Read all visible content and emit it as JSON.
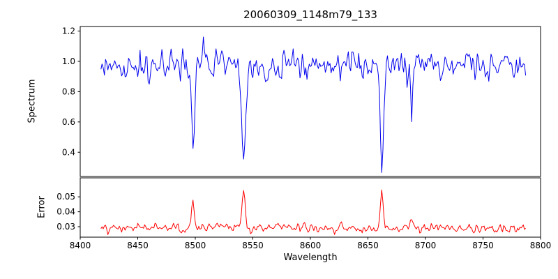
{
  "title": "20060309_1148m79_133",
  "chart_data": {
    "type": "line",
    "title": "20060309_1148m79_133",
    "xlabel": "Wavelength",
    "x_axis_range": [
      8400,
      8800
    ],
    "x_data_range": [
      8418,
      8787
    ],
    "x_ticks": [
      8400,
      8450,
      8500,
      8550,
      8600,
      8650,
      8700,
      8750,
      8800
    ],
    "grid": false,
    "legend": "none",
    "panels": [
      {
        "name": "spectrum",
        "ylabel": "Spectrum",
        "line_color": "#0000ee",
        "ylim": [
          0.24,
          1.23
        ],
        "y_ticks": [
          {
            "v": 0.4,
            "label": "0.4"
          },
          {
            "v": 0.6,
            "label": "0.6"
          },
          {
            "v": 0.8,
            "label": "0.8"
          },
          {
            "v": 1.0,
            "label": "1.0"
          },
          {
            "v": 1.2,
            "label": "1.2"
          }
        ],
        "continuum": 0.97,
        "noise_std": 0.05,
        "features": [
          {
            "type": "absorption",
            "center": 8498,
            "depth": 0.58,
            "sigma": 1.3
          },
          {
            "type": "absorption",
            "center": 8542,
            "depth": 0.67,
            "sigma": 1.8
          },
          {
            "type": "absorption",
            "center": 8662,
            "depth": 0.66,
            "sigma": 1.5
          },
          {
            "type": "absorption",
            "center": 8688,
            "depth": 0.32,
            "sigma": 0.9
          },
          {
            "type": "emission",
            "center": 8507,
            "height": 0.24,
            "sigma": 0.7
          }
        ]
      },
      {
        "name": "error",
        "ylabel": "Error",
        "line_color": "#ff0000",
        "ylim": [
          0.023,
          0.0627
        ],
        "y_ticks": [
          {
            "v": 0.03,
            "label": "0.03"
          },
          {
            "v": 0.04,
            "label": "0.04"
          },
          {
            "v": 0.05,
            "label": "0.05"
          }
        ],
        "continuum": 0.029,
        "noise_std": 0.0016,
        "features": [
          {
            "type": "emission",
            "center": 8498,
            "height": 0.017,
            "sigma": 1.1
          },
          {
            "type": "emission",
            "center": 8542,
            "height": 0.027,
            "sigma": 1.3
          },
          {
            "type": "emission",
            "center": 8662,
            "height": 0.026,
            "sigma": 1.2
          },
          {
            "type": "emission",
            "center": 8688,
            "height": 0.006,
            "sigma": 0.9
          }
        ]
      }
    ]
  }
}
